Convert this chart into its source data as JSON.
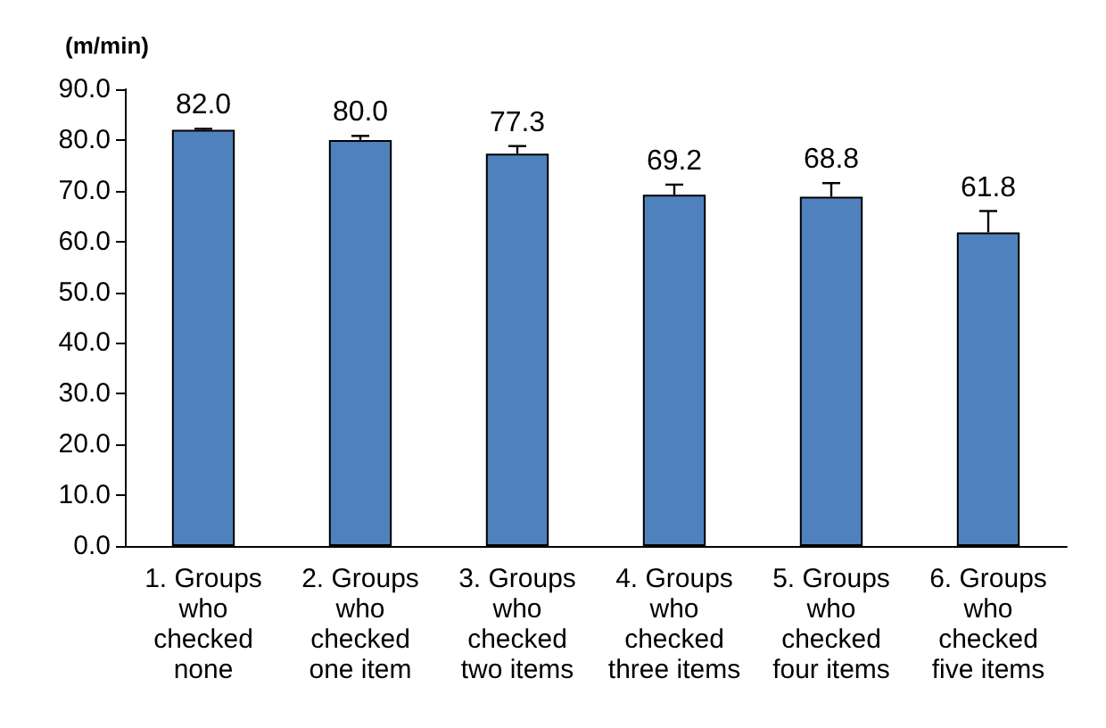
{
  "chart_data": {
    "type": "bar",
    "ylabel": "(m/min)",
    "categories": [
      "1. Groups\nwho\nchecked\nnone",
      "2. Groups\nwho\nchecked\none item",
      "3. Groups\nwho\nchecked\ntwo items",
      "4. Groups\nwho\nchecked\nthree items",
      "5. Groups\nwho\nchecked\nfour items",
      "6. Groups\nwho\nchecked\nfive items"
    ],
    "values": [
      82.0,
      80.0,
      77.3,
      69.2,
      68.8,
      61.8
    ],
    "errors": [
      [
        82.0,
        82.2
      ],
      [
        80.0,
        80.8
      ],
      [
        77.3,
        78.8
      ],
      [
        69.2,
        71.2
      ],
      [
        68.8,
        71.5
      ],
      [
        61.8,
        66.0
      ]
    ],
    "value_labels": [
      "82.0",
      "80.0",
      "77.3",
      "69.2",
      "68.8",
      "61.8"
    ],
    "color": "#4f81bd",
    "grid": false,
    "ylim": [
      0,
      90
    ],
    "yticks": [
      {
        "value": 0,
        "label": "0.0"
      },
      {
        "value": 10,
        "label": "10.0"
      },
      {
        "value": 20,
        "label": "20.0"
      },
      {
        "value": 30,
        "label": "30.0"
      },
      {
        "value": 40,
        "label": "40.0"
      },
      {
        "value": 50,
        "label": "50.0"
      },
      {
        "value": 60,
        "label": "60.0"
      },
      {
        "value": 70,
        "label": "70.0"
      },
      {
        "value": 80,
        "label": "80.0"
      },
      {
        "value": 90,
        "label": "90.0"
      }
    ]
  }
}
